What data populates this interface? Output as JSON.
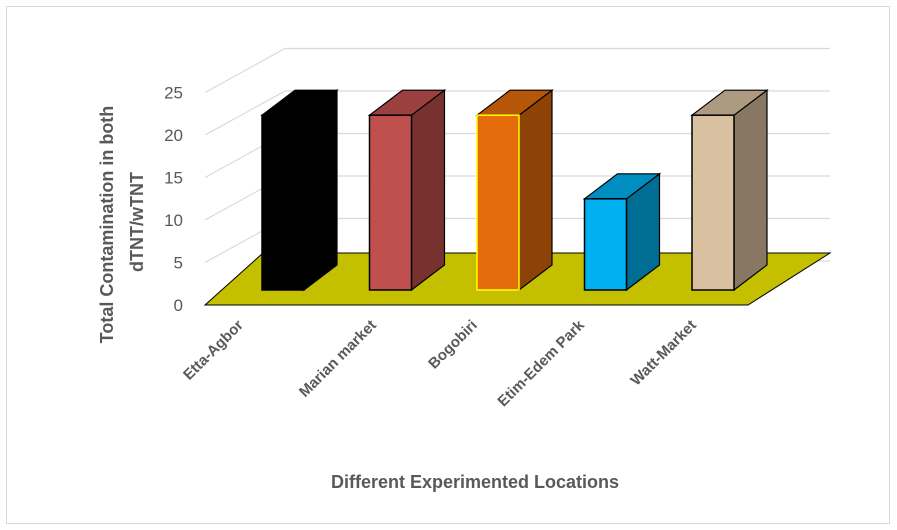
{
  "chart_data": {
    "type": "bar",
    "style": "3d-column",
    "categories": [
      "Etta-Agbor",
      "Marian market",
      "Bogobiri",
      "Etim-Edem Park",
      "Watt-Market"
    ],
    "series": [
      {
        "values": [
          23,
          23,
          23,
          12,
          23
        ]
      }
    ],
    "bar_colors": [
      "#000000",
      "#c0504d",
      "#e46c0a",
      "#00b0f0",
      "#d9c0a0"
    ],
    "bar_edge_colors": [
      "#000000",
      "#000000",
      "#ffff00",
      "#000000",
      "#000000"
    ],
    "floor_color": "#c4c000",
    "xlabel": "Different Experimented Locations",
    "ylabel_lines": [
      "Total Contamination in  both",
      "dTNT/wTNT"
    ],
    "ylim": [
      0,
      25
    ],
    "yticks": [
      0,
      5,
      10,
      15,
      20,
      25
    ],
    "grid": true,
    "legend": "none"
  }
}
